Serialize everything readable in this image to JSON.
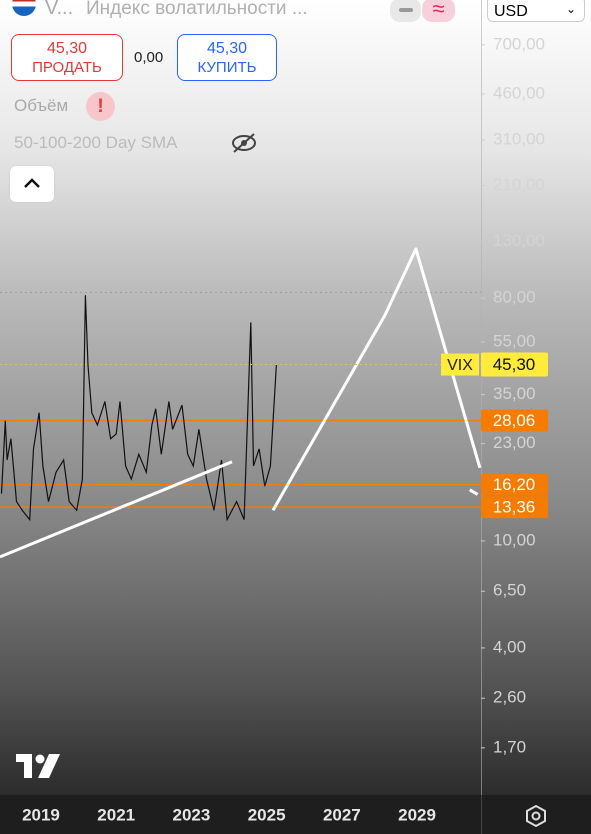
{
  "header": {
    "symbol": "V...",
    "title": "Индекс волатильности ...",
    "currency": "USD"
  },
  "trade": {
    "sell_price": "45,30",
    "sell_label": "ПРОДАТЬ",
    "spread": "0,00",
    "buy_price": "45,30",
    "buy_label": "КУПИТЬ"
  },
  "indicators": [
    "Объём",
    "50-100-200 Day SMA"
  ],
  "chart_data": {
    "type": "line",
    "symbol_label": "VIX",
    "color": "#111111",
    "log_scale": true,
    "x": [
      2017.95,
      2018.05,
      2018.1,
      2018.2,
      2018.35,
      2018.5,
      2018.7,
      2018.8,
      2018.95,
      2019.05,
      2019.2,
      2019.4,
      2019.6,
      2019.75,
      2019.95,
      2020.1,
      2020.18,
      2020.25,
      2020.35,
      2020.5,
      2020.7,
      2020.85,
      2021.0,
      2021.1,
      2021.25,
      2021.4,
      2021.6,
      2021.8,
      2021.95,
      2022.05,
      2022.2,
      2022.4,
      2022.5,
      2022.75,
      2022.9,
      2023.05,
      2023.2,
      2023.4,
      2023.6,
      2023.8,
      2023.95,
      2024.2,
      2024.4,
      2024.58,
      2024.65,
      2024.8,
      2024.95,
      2025.1,
      2025.26
    ],
    "values": [
      15,
      28,
      20,
      24,
      14,
      13,
      12,
      22,
      30,
      19,
      14,
      18,
      20,
      14,
      13,
      17,
      82,
      45,
      30,
      27,
      33,
      24,
      25,
      33,
      19,
      17,
      21,
      18,
      27,
      31,
      21,
      33,
      26,
      32,
      21,
      19,
      26,
      17,
      13,
      20,
      12,
      14,
      12,
      65,
      19,
      22,
      16,
      19,
      45.3
    ],
    "xlim": [
      2017.91,
      2030.7
    ],
    "xticks": [
      2019,
      2021,
      2023,
      2025,
      2027,
      2029
    ],
    "ylim": [
      1.135,
      1028
    ],
    "yticks": [
      {
        "value": 700,
        "label": "700,00"
      },
      {
        "value": 460,
        "label": "460,00"
      },
      {
        "value": 310,
        "label": "310,00"
      },
      {
        "value": 210,
        "label": "210,00"
      },
      {
        "value": 130,
        "label": "130,00"
      },
      {
        "value": 80,
        "label": "80,00"
      },
      {
        "value": 55,
        "label": "55,00"
      },
      {
        "value": 35,
        "label": "35,00"
      },
      {
        "value": 23,
        "label": "23,00"
      },
      {
        "value": 10,
        "label": "10,00"
      },
      {
        "value": 6.5,
        "label": "6,50"
      },
      {
        "value": 4,
        "label": "4,00"
      },
      {
        "value": 2.6,
        "label": "2,60"
      },
      {
        "value": 1.7,
        "label": "1,70"
      }
    ],
    "price_line": {
      "value": 45.3,
      "label": "45,30",
      "color": "#ffeb3b"
    },
    "high_line": 84,
    "levels": [
      {
        "value": 28.06,
        "label": "28,06"
      },
      {
        "value": 16.2,
        "label": "16,20"
      },
      {
        "value": 13.36,
        "label": "13,36"
      }
    ],
    "level_color": "#f57c00",
    "drawings": [
      {
        "x": [
          2017.91,
          2024.08
        ],
        "y": [
          8.72,
          19.7
        ]
      },
      {
        "x": [
          2025.17,
          2028.15,
          2028.97,
          2030.67
        ],
        "y": [
          13.0,
          69.3,
          122,
          18.7
        ]
      },
      {
        "x": [
          2030.4,
          2030.61
        ],
        "y": [
          15.5,
          14.9
        ]
      }
    ],
    "drawing_color": "#ffffff"
  }
}
